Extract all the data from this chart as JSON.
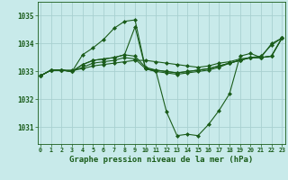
{
  "background_color": "#c8eaea",
  "grid_color": "#a8d0d0",
  "line_color": "#1a5c1a",
  "xlabel": "Graphe pression niveau de la mer (hPa)",
  "xlabel_fontsize": 6.5,
  "yticks": [
    1031,
    1032,
    1033,
    1034,
    1035
  ],
  "xticks": [
    0,
    1,
    2,
    3,
    4,
    5,
    6,
    7,
    8,
    9,
    10,
    11,
    12,
    13,
    14,
    15,
    16,
    17,
    18,
    19,
    20,
    21,
    22,
    23
  ],
  "ylim": [
    1030.4,
    1035.5
  ],
  "xlim": [
    -0.3,
    23.3
  ],
  "series": [
    [
      1032.85,
      1033.05,
      1033.05,
      1033.05,
      1033.1,
      1033.2,
      1033.25,
      1033.3,
      1033.35,
      1033.4,
      1033.4,
      1033.35,
      1033.3,
      1033.25,
      1033.2,
      1033.15,
      1033.2,
      1033.3,
      1033.35,
      1033.45,
      1033.5,
      1033.55,
      1033.95,
      1034.2
    ],
    [
      1032.85,
      1033.05,
      1033.05,
      1033.0,
      1033.6,
      1033.85,
      1034.15,
      1034.55,
      1034.8,
      1034.85,
      1033.1,
      1033.0,
      1031.55,
      1030.7,
      1030.75,
      1030.7,
      1031.1,
      1031.6,
      1032.2,
      1033.55,
      1033.65,
      1033.5,
      1034.0,
      1034.2
    ],
    [
      1032.85,
      1033.05,
      1033.05,
      1033.0,
      1033.25,
      1033.4,
      1033.45,
      1033.5,
      1033.6,
      1034.6,
      1033.1,
      1033.05,
      1033.0,
      1032.95,
      1033.0,
      1033.05,
      1033.1,
      1033.2,
      1033.3,
      1033.4,
      1033.5,
      1033.5,
      1033.55,
      1034.2
    ],
    [
      1032.85,
      1033.05,
      1033.05,
      1033.0,
      1033.25,
      1033.4,
      1033.45,
      1033.5,
      1033.6,
      1033.55,
      1033.15,
      1033.05,
      1033.0,
      1032.95,
      1033.0,
      1033.05,
      1033.1,
      1033.2,
      1033.3,
      1033.4,
      1033.5,
      1033.5,
      1033.55,
      1034.2
    ],
    [
      1032.85,
      1033.05,
      1033.05,
      1033.0,
      1033.15,
      1033.3,
      1033.35,
      1033.4,
      1033.5,
      1033.45,
      1033.1,
      1033.0,
      1032.95,
      1032.9,
      1032.95,
      1033.0,
      1033.05,
      1033.15,
      1033.3,
      1033.4,
      1033.5,
      1033.5,
      1033.55,
      1034.2
    ]
  ]
}
